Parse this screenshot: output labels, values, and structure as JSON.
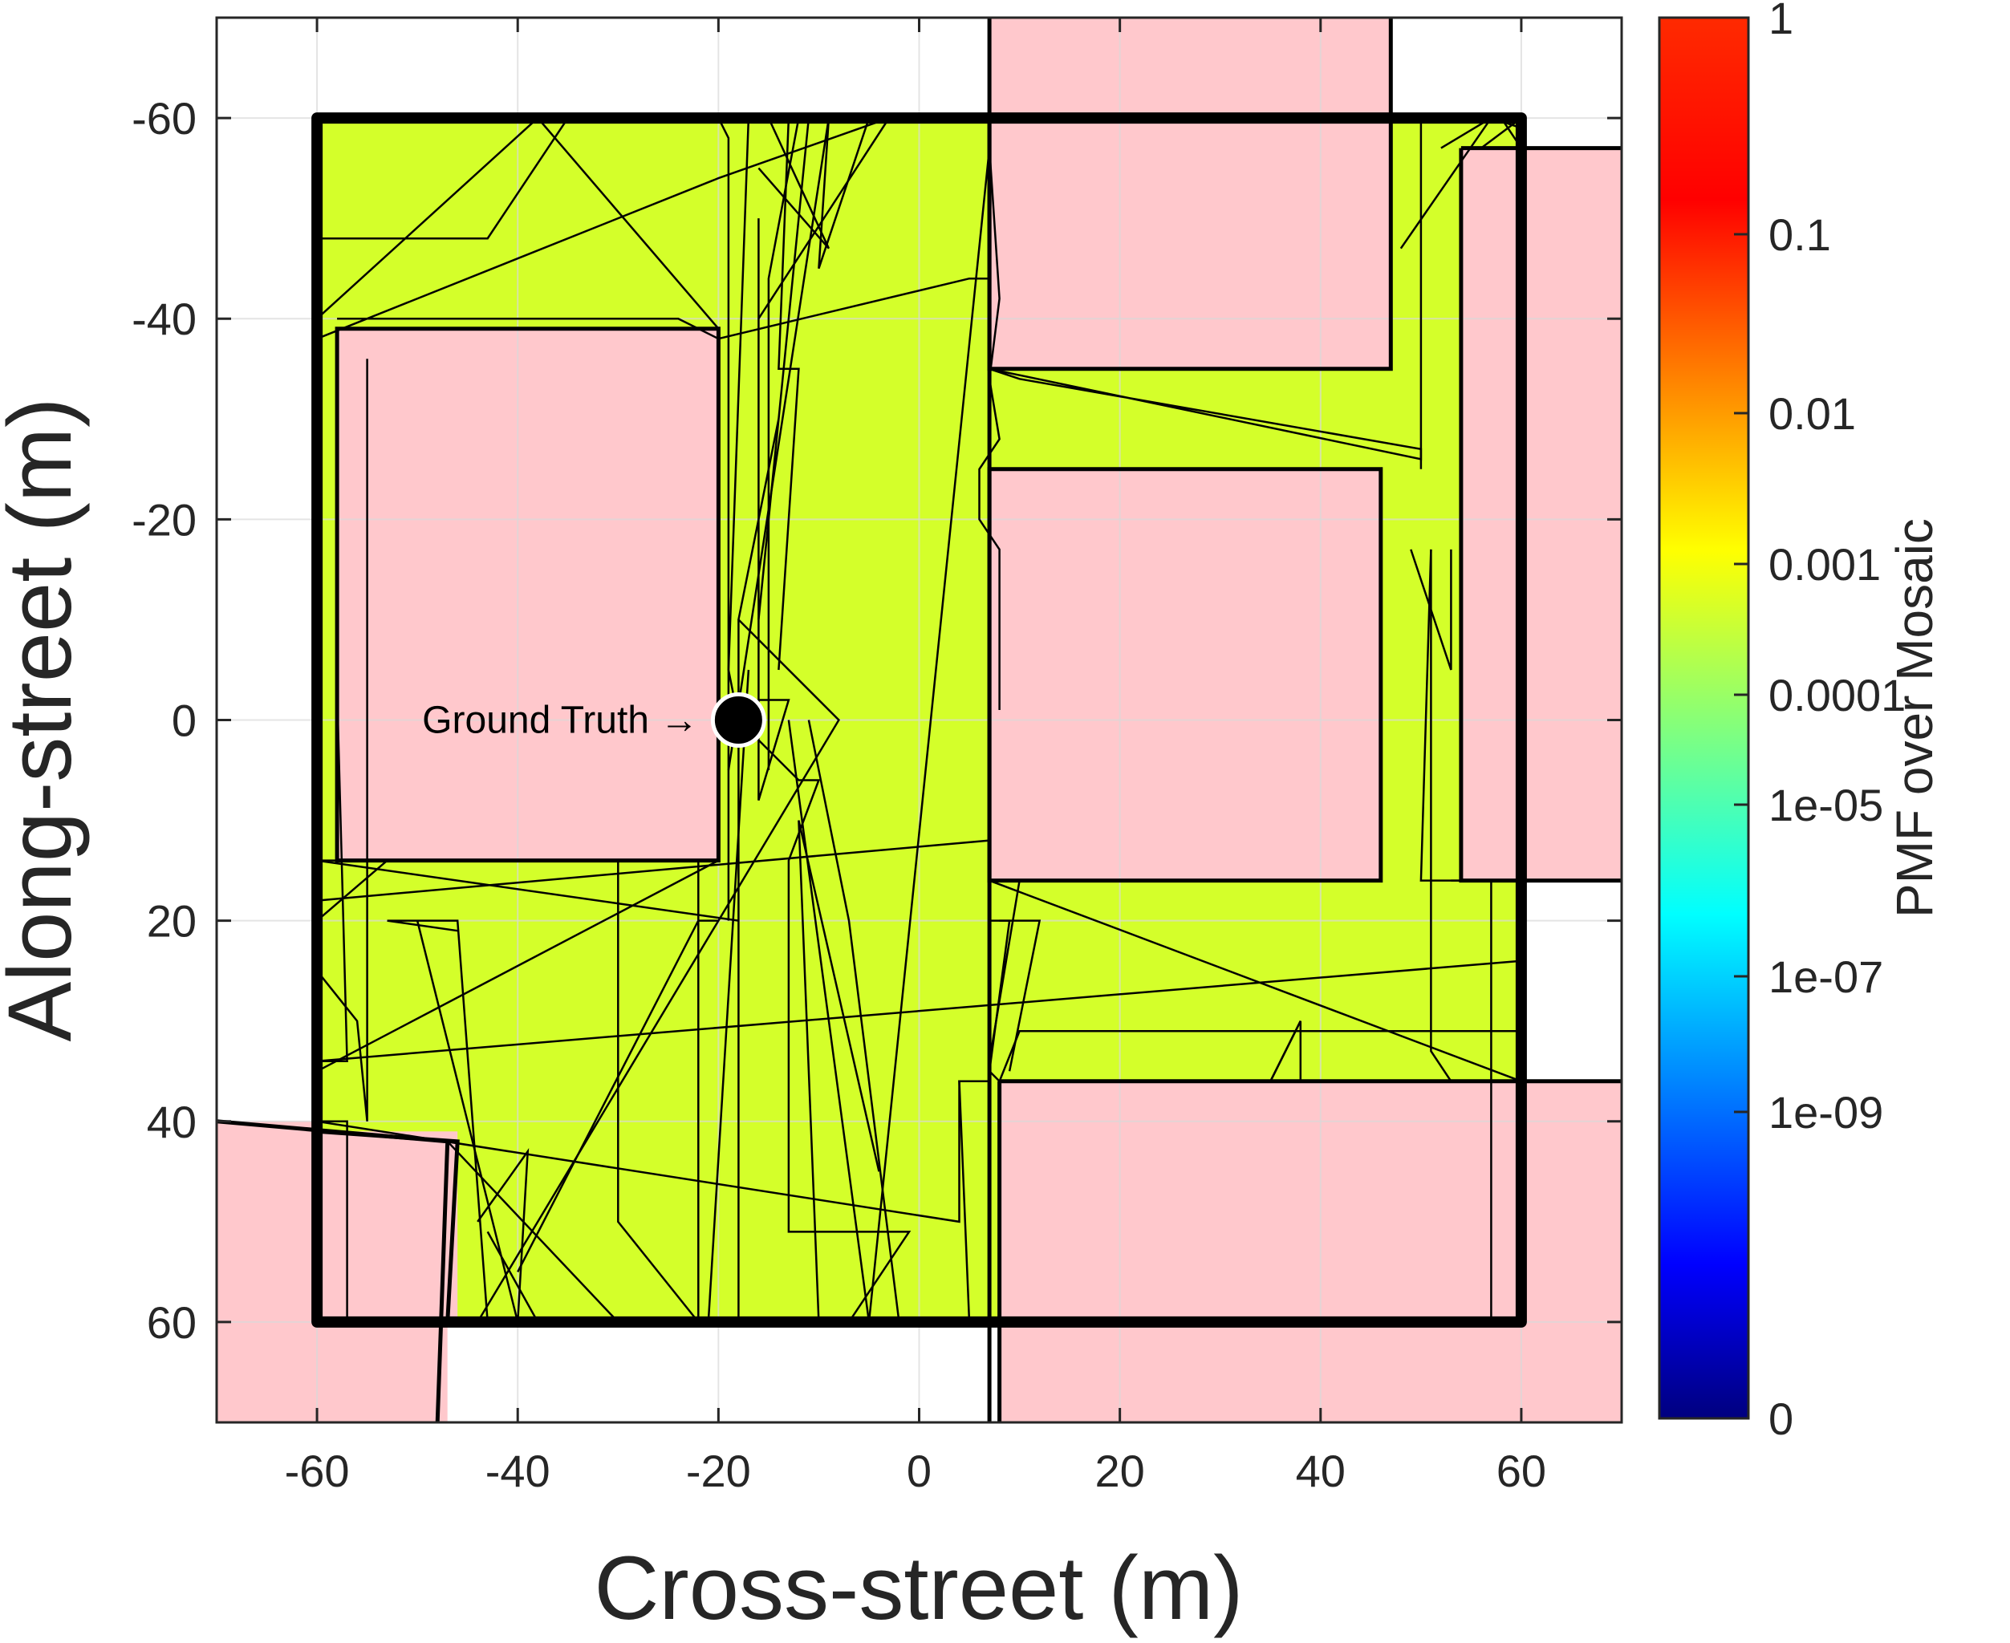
{
  "chart_data": {
    "type": "map",
    "title": "",
    "xlabel": "Cross-street (m)",
    "ylabel": "Along-street (m)",
    "xlim": [
      -70,
      70
    ],
    "ylim": [
      -70,
      70
    ],
    "y_reversed": true,
    "grid": true,
    "x_ticks": [
      -60,
      -40,
      -20,
      0,
      20,
      40,
      60
    ],
    "y_ticks": [
      -60,
      -40,
      -20,
      0,
      20,
      40,
      60
    ],
    "x_tick_labels": [
      "-60",
      "-40",
      "-20",
      "0",
      "20",
      "40",
      "60"
    ],
    "y_tick_labels": [
      "-60",
      "-40",
      "-20",
      "0",
      "20",
      "40",
      "60"
    ],
    "colors": {
      "building": "#ffc8cc",
      "mosaic_fill": "#d4ff2a",
      "outline": "#000000",
      "grid": "#d9d9d9"
    },
    "mosaic_region": {
      "name": "Mosaic",
      "pmf_value": 0.008,
      "polygon": [
        [
          -60,
          -60
        ],
        [
          60,
          -60
        ],
        [
          60,
          60
        ],
        [
          -60,
          60
        ]
      ]
    },
    "buildings": [
      {
        "name": "building-west-block",
        "x": [
          -58,
          -20
        ],
        "y": [
          -39,
          14
        ]
      },
      {
        "name": "building-northeast-block",
        "x": [
          7,
          47
        ],
        "y": [
          -60,
          -35
        ]
      },
      {
        "name": "building-north-overhang",
        "x": [
          7,
          47
        ],
        "y": [
          -70,
          -60
        ]
      },
      {
        "name": "building-center-east-block",
        "x": [
          7,
          46
        ],
        "y": [
          -25,
          16
        ]
      },
      {
        "name": "building-east-strip",
        "x": [
          54,
          70
        ],
        "y": [
          -57,
          16
        ]
      },
      {
        "name": "building-southeast-block",
        "x": [
          8,
          70
        ],
        "y": [
          36,
          70
        ]
      },
      {
        "name": "building-southwest-block",
        "x": [
          -70,
          -47
        ],
        "y": [
          40,
          70
        ]
      },
      {
        "name": "building-southwest-inner",
        "x": [
          -60,
          -46
        ],
        "y": [
          41,
          60
        ]
      }
    ],
    "building_outlines": [
      [
        [
          -58,
          -39
        ],
        [
          -20,
          -39
        ],
        [
          -20,
          14
        ],
        [
          -58,
          14
        ]
      ],
      [
        [
          7,
          -60
        ],
        [
          47,
          -60
        ],
        [
          47,
          -35
        ],
        [
          7,
          -35
        ]
      ],
      [
        [
          7,
          -25
        ],
        [
          46,
          -25
        ],
        [
          46,
          16
        ],
        [
          7,
          16
        ]
      ],
      [
        [
          54,
          -57
        ],
        [
          70,
          -57
        ]
      ],
      [
        [
          54,
          -57
        ],
        [
          54,
          16
        ],
        [
          70,
          16
        ]
      ],
      [
        [
          8,
          36
        ],
        [
          70,
          36
        ]
      ],
      [
        [
          8,
          36
        ],
        [
          8,
          70
        ]
      ],
      [
        [
          -70,
          40
        ],
        [
          -47,
          42
        ],
        [
          -48,
          70
        ]
      ],
      [
        [
          -60,
          41
        ],
        [
          -46,
          42
        ],
        [
          -47,
          60
        ]
      ],
      [
        [
          7,
          -70
        ],
        [
          7,
          70
        ]
      ],
      [
        [
          47,
          -70
        ],
        [
          47,
          -60
        ]
      ]
    ],
    "mosaic_boundary": [
      [
        -60,
        -60
      ],
      [
        60,
        -60
      ],
      [
        60,
        60
      ],
      [
        -60,
        60
      ],
      [
        -60,
        -60
      ]
    ],
    "candidate_paths": [
      [
        [
          -60,
          -48
        ],
        [
          -43,
          -48
        ],
        [
          -35,
          -60
        ]
      ],
      [
        [
          -60,
          -38
        ],
        [
          -20,
          -54
        ],
        [
          -3,
          -60
        ]
      ],
      [
        [
          -58,
          -40
        ],
        [
          -24,
          -40
        ],
        [
          -20,
          -38
        ],
        [
          5,
          -44
        ],
        [
          7,
          -44
        ],
        [
          7,
          -35
        ],
        [
          10,
          -34
        ],
        [
          50,
          -27
        ],
        [
          50,
          -26
        ],
        [
          7,
          -35
        ]
      ],
      [
        [
          -60,
          -40
        ],
        [
          -38,
          -60
        ],
        [
          -20,
          -39
        ]
      ],
      [
        [
          -20,
          -60
        ],
        [
          -19,
          -58
        ],
        [
          -19,
          20
        ]
      ],
      [
        [
          -16,
          -50
        ],
        [
          -16,
          -2
        ],
        [
          -13,
          -2
        ],
        [
          -16,
          8
        ],
        [
          -16,
          -30
        ]
      ],
      [
        [
          -14,
          -60
        ],
        [
          -12,
          -60
        ],
        [
          -15,
          -44
        ],
        [
          -15,
          5
        ]
      ],
      [
        [
          -13,
          -60
        ],
        [
          -14,
          -35
        ],
        [
          -12,
          -35
        ],
        [
          -14,
          -5
        ]
      ],
      [
        [
          -17,
          -60
        ],
        [
          -5,
          -60
        ],
        [
          -10,
          -45
        ],
        [
          -9,
          -60
        ],
        [
          -19,
          5
        ]
      ],
      [
        [
          -16,
          -55
        ],
        [
          -9,
          -47
        ],
        [
          -15,
          -60
        ]
      ],
      [
        [
          -17,
          -60
        ],
        [
          -19,
          -5
        ],
        [
          -18,
          0
        ],
        [
          -12,
          6
        ],
        [
          -10,
          6
        ],
        [
          -13,
          14
        ],
        [
          -13,
          51
        ],
        [
          -1,
          51
        ],
        [
          -7,
          60
        ]
      ],
      [
        [
          -16,
          -40
        ],
        [
          -3,
          -60
        ],
        [
          -11,
          -60
        ],
        [
          -16,
          -10
        ]
      ],
      [
        [
          -18,
          -10
        ],
        [
          -18,
          60
        ]
      ],
      [
        [
          -17,
          -5
        ],
        [
          -21,
          60
        ]
      ],
      [
        [
          -13,
          0
        ],
        [
          -5,
          60
        ]
      ],
      [
        [
          -11,
          0
        ],
        [
          -7,
          20
        ],
        [
          -2,
          60
        ]
      ],
      [
        [
          -60,
          14
        ],
        [
          -20,
          14
        ],
        [
          -60,
          35
        ]
      ],
      [
        [
          -60,
          20
        ],
        [
          -53,
          14
        ],
        [
          -40,
          14
        ],
        [
          -20,
          14
        ]
      ],
      [
        [
          -60,
          14
        ],
        [
          -18,
          20
        ]
      ],
      [
        [
          -50,
          20
        ],
        [
          -40,
          60
        ]
      ],
      [
        [
          -46,
          21
        ],
        [
          -53,
          20
        ],
        [
          -46,
          20
        ],
        [
          -43,
          60
        ]
      ],
      [
        [
          -60,
          25
        ],
        [
          -56,
          30
        ],
        [
          -55,
          40
        ],
        [
          -55,
          -36
        ]
      ],
      [
        [
          -60,
          34
        ],
        [
          -57,
          34
        ],
        [
          -58,
          -3
        ]
      ],
      [
        [
          -60,
          40
        ],
        [
          -57,
          40
        ],
        [
          -57,
          60
        ]
      ],
      [
        [
          -60,
          34
        ],
        [
          60,
          24
        ]
      ],
      [
        [
          -60,
          18
        ],
        [
          7,
          12
        ],
        [
          7,
          16
        ],
        [
          60,
          36
        ]
      ],
      [
        [
          -60,
          40
        ],
        [
          4,
          50
        ],
        [
          4,
          36
        ],
        [
          7,
          36
        ],
        [
          7,
          20
        ],
        [
          9,
          20
        ],
        [
          7,
          35
        ],
        [
          8,
          36
        ]
      ],
      [
        [
          -47,
          42
        ],
        [
          -30,
          60
        ],
        [
          -16,
          60
        ]
      ],
      [
        [
          -44,
          60
        ],
        [
          -20,
          20
        ],
        [
          -8,
          0
        ],
        [
          -18,
          -10
        ],
        [
          -14,
          -30
        ]
      ],
      [
        [
          -43,
          51
        ],
        [
          -38,
          60
        ]
      ],
      [
        [
          -40,
          55
        ],
        [
          -22,
          20
        ],
        [
          -20,
          20
        ]
      ],
      [
        [
          -44,
          50
        ],
        [
          -39,
          43
        ],
        [
          -40,
          60
        ]
      ],
      [
        [
          -30,
          14
        ],
        [
          -30,
          50
        ],
        [
          -22,
          60
        ]
      ],
      [
        [
          -22,
          14
        ],
        [
          -22,
          60
        ]
      ],
      [
        [
          -4,
          45
        ],
        [
          -12,
          10
        ],
        [
          -10,
          60
        ]
      ],
      [
        [
          -5,
          60
        ],
        [
          7,
          -57
        ],
        [
          8,
          -42
        ],
        [
          7,
          -34
        ],
        [
          8,
          -28
        ],
        [
          6,
          -25
        ],
        [
          6,
          -20
        ],
        [
          8,
          -17
        ],
        [
          8,
          -1
        ]
      ],
      [
        [
          5,
          60
        ],
        [
          4,
          36
        ],
        [
          7,
          36
        ]
      ],
      [
        [
          7,
          16
        ],
        [
          10,
          16
        ],
        [
          7,
          34
        ],
        [
          7,
          36
        ]
      ],
      [
        [
          8,
          20
        ],
        [
          12,
          20
        ],
        [
          9,
          35
        ]
      ],
      [
        [
          8,
          36
        ],
        [
          10,
          31
        ],
        [
          60,
          31
        ]
      ],
      [
        [
          35,
          36
        ],
        [
          38,
          30
        ],
        [
          38,
          36
        ]
      ],
      [
        [
          40,
          36
        ],
        [
          35,
          36
        ],
        [
          38,
          30
        ]
      ],
      [
        [
          52,
          -57
        ],
        [
          57,
          -60
        ],
        [
          60,
          -59
        ]
      ],
      [
        [
          48,
          -47
        ],
        [
          57,
          -60
        ],
        [
          60,
          -60
        ],
        [
          56,
          -57
        ]
      ],
      [
        [
          51,
          -17
        ],
        [
          51,
          33
        ],
        [
          53,
          36
        ]
      ],
      [
        [
          50,
          -60
        ],
        [
          50,
          -40
        ],
        [
          50,
          -25
        ]
      ],
      [
        [
          53,
          -17
        ],
        [
          53,
          -16
        ],
        [
          53,
          -5
        ],
        [
          49,
          -17
        ]
      ],
      [
        [
          53,
          16
        ],
        [
          57,
          16
        ],
        [
          57,
          60
        ]
      ],
      [
        [
          57,
          16
        ],
        [
          50,
          16
        ],
        [
          51,
          -17
        ]
      ],
      [
        [
          58,
          -60
        ],
        [
          60,
          -57
        ]
      ]
    ],
    "ground_truth": {
      "x": -18,
      "y": 0
    },
    "annotations": [
      {
        "text": "Ground Truth →",
        "x": -22,
        "y": 0
      }
    ],
    "colorbar": {
      "label": "PMF over Mosaic",
      "scale": "log",
      "colormap": "jet",
      "ticks": [
        {
          "label": "1",
          "value": 1
        },
        {
          "label": "0.1",
          "value": 0.1
        },
        {
          "label": "0.01",
          "value": 0.01
        },
        {
          "label": "0.001",
          "value": 0.001
        },
        {
          "label": "0.0001",
          "value": 0.0001
        },
        {
          "label": "1e-05",
          "value": 1e-05
        },
        {
          "label": "1e-07",
          "value": 1e-07
        },
        {
          "label": "1e-09",
          "value": 1e-09
        },
        {
          "label": "0",
          "value": 0
        }
      ]
    }
  }
}
